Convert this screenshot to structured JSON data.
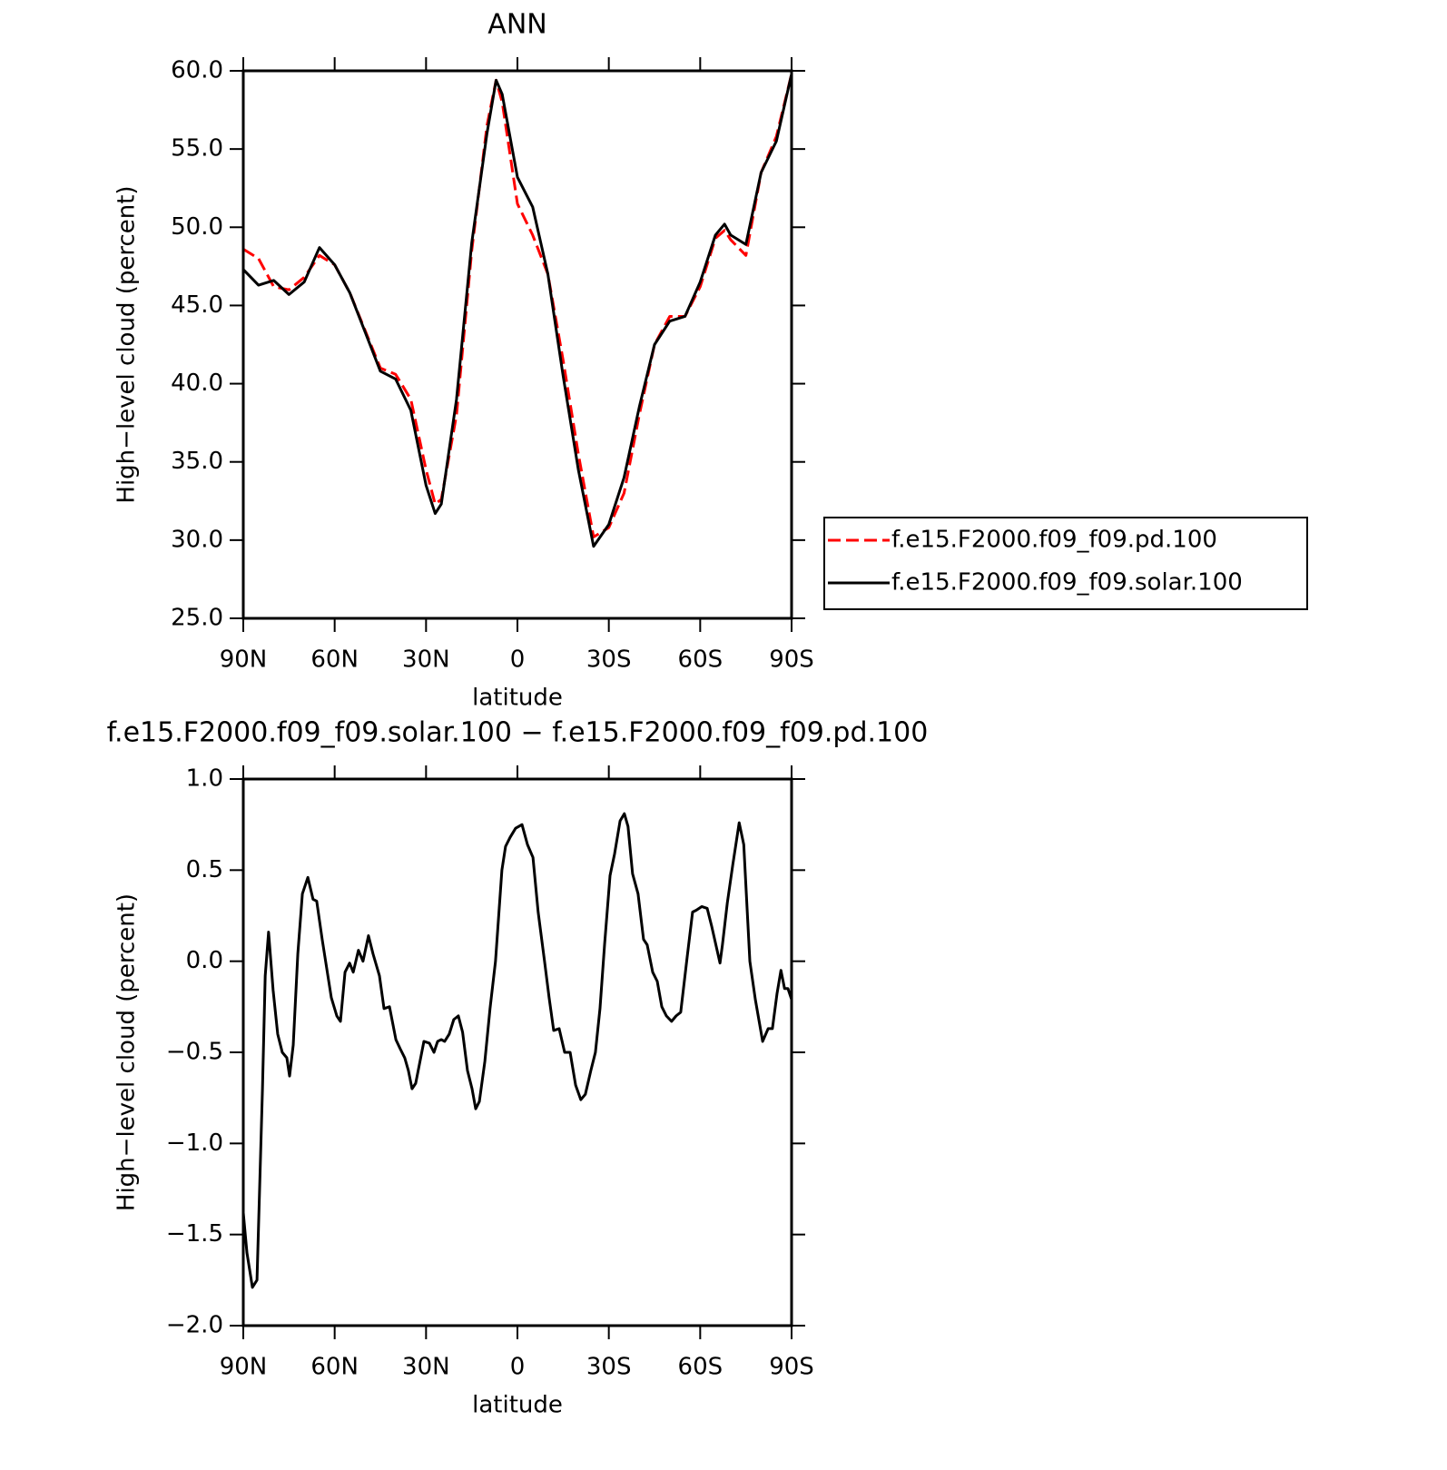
{
  "chart_data": [
    {
      "type": "line",
      "title": "ANN",
      "xlabel": "latitude",
      "ylabel": "High−level cloud (percent)",
      "x": [
        90,
        85,
        80,
        75,
        70,
        65,
        60,
        55,
        50,
        45,
        40,
        35,
        30,
        27,
        25,
        20,
        15,
        10,
        7,
        5,
        0,
        -5,
        -10,
        -15,
        -20,
        -25,
        -30,
        -35,
        -40,
        -45,
        -50,
        -55,
        -60,
        -65,
        -68,
        -70,
        -75,
        -80,
        -85,
        -90
      ],
      "series": [
        {
          "name": "f.e15.F2000.f09_f09.pd.100",
          "color": "#ff0000",
          "line_style": "dashed",
          "values": [
            48.6,
            48,
            46.2,
            46,
            46.8,
            48.2,
            47.6,
            45.8,
            43.4,
            41,
            40.6,
            39,
            34.5,
            32.3,
            32.6,
            38,
            48.5,
            56.5,
            59.4,
            58,
            51.5,
            49.5,
            47,
            41.5,
            35.5,
            30.2,
            30.8,
            33,
            38,
            42.5,
            44.3,
            44.3,
            46.2,
            49.3,
            49.8,
            49.2,
            48.2,
            53.5,
            55.8,
            59.8
          ]
        },
        {
          "name": "f.e15.F2000.f09_f09.solar.100",
          "color": "#000000",
          "line_style": "solid",
          "values": [
            47.3,
            46.3,
            46.6,
            45.7,
            46.5,
            48.7,
            47.6,
            45.8,
            43.3,
            40.8,
            40.3,
            38.3,
            33.5,
            31.7,
            32.3,
            39,
            49,
            56,
            59.4,
            58.5,
            53.2,
            51.3,
            47,
            40.5,
            34.5,
            29.6,
            31,
            34,
            38.5,
            42.5,
            44,
            44.3,
            46.5,
            49.5,
            50.2,
            49.5,
            48.9,
            53.5,
            55.5,
            59.8
          ]
        }
      ],
      "xlim": [
        90,
        -90
      ],
      "xticks": [
        {
          "value": 90,
          "label": "90N"
        },
        {
          "value": 60,
          "label": "60N"
        },
        {
          "value": 30,
          "label": "30N"
        },
        0,
        {
          "value": -30,
          "label": "30S"
        },
        {
          "value": -60,
          "label": "60S"
        },
        {
          "value": -90,
          "label": "90S"
        }
      ],
      "ylim": [
        25,
        60
      ],
      "yticks": [
        {
          "value": 25,
          "label": "25.0"
        },
        {
          "value": 30,
          "label": "30.0"
        },
        {
          "value": 35,
          "label": "35.0"
        },
        {
          "value": 40,
          "label": "40.0"
        },
        {
          "value": 45,
          "label": "45.0"
        },
        {
          "value": 50,
          "label": "50.0"
        },
        {
          "value": 55,
          "label": "55.0"
        },
        {
          "value": 60,
          "label": "60.0"
        }
      ],
      "legend": "right"
    },
    {
      "type": "line",
      "title": "f.e15.F2000.f09_f09.solar.100 − f.e15.F2000.f09_f09.pd.100",
      "xlabel": "latitude",
      "ylabel": "High−level cloud (percent)",
      "x": [
        90,
        88.8,
        87,
        85.5,
        83.7,
        82.8,
        81.7,
        80.2,
        78.7,
        77.2,
        75.7,
        74.8,
        73.6,
        72.1,
        70.6,
        68.8,
        67.1,
        65.9,
        64.1,
        61.1,
        59.3,
        58.1,
        56.6,
        55.1,
        53.9,
        52.2,
        50.7,
        48.9,
        47.4,
        45.3,
        43.8,
        42,
        39.9,
        38.5,
        37,
        35.8,
        34.6,
        33.4,
        30.7,
        28.9,
        27.4,
        26.2,
        25,
        23.9,
        22.4,
        20.9,
        19.4,
        18,
        16.4,
        14.9,
        13.7,
        12.5,
        10.7,
        9,
        7.2,
        5.1,
        3.9,
        2.4,
        0.6,
        -1.5,
        -3.3,
        -5.1,
        -6.8,
        -8.9,
        -10.4,
        -11.9,
        -13.7,
        -15.5,
        -17.3,
        -19.1,
        -20.8,
        -22.3,
        -24.1,
        -25.6,
        -27.1,
        -28.6,
        -30.4,
        -31.9,
        -33.7,
        -35.1,
        -36.3,
        -37.8,
        -39.6,
        -41.4,
        -42.6,
        -44.4,
        -45.9,
        -47.4,
        -48.9,
        -50.6,
        -52.1,
        -53.6,
        -55.7,
        -57.5,
        -58.7,
        -60.5,
        -62.3,
        -63.8,
        -66.5,
        -67.3,
        -68.9,
        -70.7,
        -72.8,
        -74.3,
        -76.3,
        -78.1,
        -80.5,
        -82.3,
        -83.7,
        -85.2,
        -86.5,
        -87.7,
        -88.8,
        -90
      ],
      "series": [
        {
          "color": "#000000",
          "line_style": "solid",
          "values": [
            -1.38,
            -1.6,
            -1.79,
            -1.75,
            -0.7,
            -0.08,
            0.16,
            -0.16,
            -0.4,
            -0.5,
            -0.53,
            -0.63,
            -0.46,
            0.04,
            0.37,
            0.46,
            0.34,
            0.33,
            0.12,
            -0.2,
            -0.3,
            -0.33,
            -0.06,
            -0.01,
            -0.06,
            0.06,
            0,
            0.14,
            0.04,
            -0.08,
            -0.26,
            -0.25,
            -0.43,
            -0.48,
            -0.53,
            -0.6,
            -0.7,
            -0.67,
            -0.44,
            -0.45,
            -0.5,
            -0.44,
            -0.43,
            -0.44,
            -0.4,
            -0.32,
            -0.3,
            -0.39,
            -0.6,
            -0.7,
            -0.81,
            -0.77,
            -0.55,
            -0.26,
            0,
            0.5,
            0.63,
            0.68,
            0.73,
            0.75,
            0.64,
            0.57,
            0.27,
            0,
            -0.2,
            -0.38,
            -0.37,
            -0.5,
            -0.5,
            -0.68,
            -0.76,
            -0.73,
            -0.6,
            -0.5,
            -0.26,
            0.09,
            0.47,
            0.59,
            0.77,
            0.81,
            0.74,
            0.48,
            0.37,
            0.12,
            0.09,
            -0.06,
            -0.11,
            -0.25,
            -0.3,
            -0.33,
            -0.3,
            -0.28,
            0.02,
            0.27,
            0.28,
            0.3,
            0.29,
            0.19,
            -0.01,
            0.09,
            0.32,
            0.53,
            0.76,
            0.64,
            0,
            -0.21,
            -0.44,
            -0.37,
            -0.37,
            -0.18,
            -0.05,
            -0.15,
            -0.15,
            -0.21
          ]
        }
      ],
      "xlim": [
        90,
        -90
      ],
      "xticks": [
        {
          "value": 90,
          "label": "90N"
        },
        {
          "value": 60,
          "label": "60N"
        },
        {
          "value": 30,
          "label": "30N"
        },
        0,
        {
          "value": -30,
          "label": "30S"
        },
        {
          "value": -60,
          "label": "60S"
        },
        {
          "value": -90,
          "label": "90S"
        }
      ],
      "ylim": [
        -2,
        1
      ],
      "yticks": [
        {
          "value": -2,
          "label": "−2.0"
        },
        {
          "value": -1.5,
          "label": "−1.5"
        },
        {
          "value": -1,
          "label": "−1.0"
        },
        {
          "value": -0.5,
          "label": "−0.5"
        },
        {
          "value": 0,
          "label": "0.0"
        },
        {
          "value": 0.5,
          "label": "0.5"
        },
        {
          "value": 1,
          "label": "1.0"
        }
      ]
    }
  ]
}
